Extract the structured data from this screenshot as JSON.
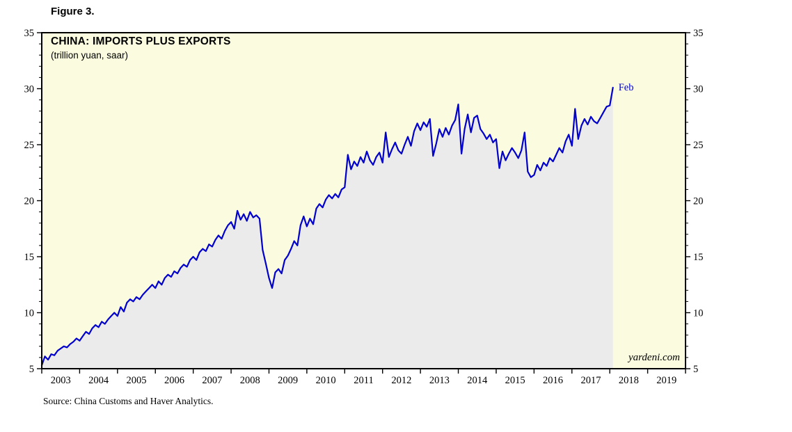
{
  "figure_label": "Figure 3.",
  "watermark": "yardeni.com",
  "source": "Source: China Customs and Haver Analytics.",
  "chart_data": {
    "type": "line",
    "title": "CHINA: IMPORTS PLUS EXPORTS",
    "subtitle": "(trillion yuan, saar)",
    "xlabel": "",
    "ylabel": "",
    "xlim": [
      2003,
      2020
    ],
    "ylim": [
      5,
      35
    ],
    "yticks": [
      5,
      10,
      15,
      20,
      25,
      30,
      35
    ],
    "y_minor_step": 1,
    "xtick_years": [
      2003,
      2004,
      2005,
      2006,
      2007,
      2008,
      2009,
      2010,
      2011,
      2012,
      2013,
      2014,
      2015,
      2016,
      2017,
      2018,
      2019,
      2020
    ],
    "xtick_labels": [
      "2003",
      "2004",
      "2005",
      "2006",
      "2007",
      "2008",
      "2009",
      "2010",
      "2011",
      "2012",
      "2013",
      "2014",
      "2015",
      "2016",
      "2017",
      "2018",
      "2019"
    ],
    "grid": false,
    "legend_position": "none",
    "annotation": {
      "label": "Feb",
      "x": 2018.0833,
      "y": 30.1
    },
    "colors": {
      "line": "#0000cd",
      "area_fill": "#ebebeb",
      "plot_background": "#fbfbe0",
      "frame": "#000000",
      "annotation_text": "#0000cd",
      "tick_text": "#000000"
    },
    "series": [
      {
        "name": "China imports plus exports (trillion yuan, saar)",
        "x_start_year": 2003,
        "x_step_months": 1,
        "values": [
          5.3,
          6.1,
          5.8,
          6.3,
          6.2,
          6.6,
          6.8,
          7.0,
          6.9,
          7.2,
          7.4,
          7.7,
          7.5,
          7.9,
          8.3,
          8.1,
          8.6,
          8.9,
          8.7,
          9.2,
          9.0,
          9.4,
          9.7,
          10.0,
          9.7,
          10.5,
          10.1,
          10.9,
          11.2,
          11.0,
          11.4,
          11.2,
          11.6,
          11.9,
          12.2,
          12.5,
          12.2,
          12.8,
          12.5,
          13.1,
          13.4,
          13.2,
          13.7,
          13.5,
          14.0,
          14.3,
          14.1,
          14.7,
          15.0,
          14.7,
          15.4,
          15.7,
          15.5,
          16.1,
          15.9,
          16.5,
          16.9,
          16.6,
          17.3,
          17.8,
          18.1,
          17.5,
          19.1,
          18.3,
          18.8,
          18.2,
          19.0,
          18.5,
          18.7,
          18.4,
          15.6,
          14.4,
          13.1,
          12.2,
          13.6,
          13.9,
          13.5,
          14.7,
          15.1,
          15.7,
          16.4,
          16.0,
          17.8,
          18.6,
          17.7,
          18.4,
          17.9,
          19.3,
          19.7,
          19.4,
          20.1,
          20.5,
          20.2,
          20.6,
          20.3,
          21.0,
          21.2,
          24.1,
          22.8,
          23.5,
          23.1,
          23.9,
          23.4,
          24.4,
          23.6,
          23.2,
          23.9,
          24.3,
          23.4,
          26.1,
          23.9,
          24.6,
          25.2,
          24.5,
          24.2,
          25.0,
          25.7,
          24.9,
          26.2,
          26.9,
          26.3,
          27.0,
          26.6,
          27.3,
          24.0,
          25.1,
          26.4,
          25.7,
          26.5,
          25.9,
          26.7,
          27.2,
          28.6,
          24.2,
          26.4,
          27.7,
          26.1,
          27.4,
          27.6,
          26.4,
          26.0,
          25.5,
          25.9,
          25.2,
          25.5,
          22.9,
          24.4,
          23.6,
          24.2,
          24.7,
          24.3,
          23.8,
          24.5,
          26.1,
          22.6,
          22.1,
          22.3,
          23.2,
          22.7,
          23.4,
          23.1,
          23.8,
          23.5,
          24.1,
          24.7,
          24.3,
          25.3,
          25.9,
          24.9,
          28.2,
          25.5,
          26.7,
          27.3,
          26.8,
          27.5,
          27.1,
          26.9,
          27.4,
          27.9,
          28.4,
          28.5,
          30.1
        ]
      }
    ]
  }
}
